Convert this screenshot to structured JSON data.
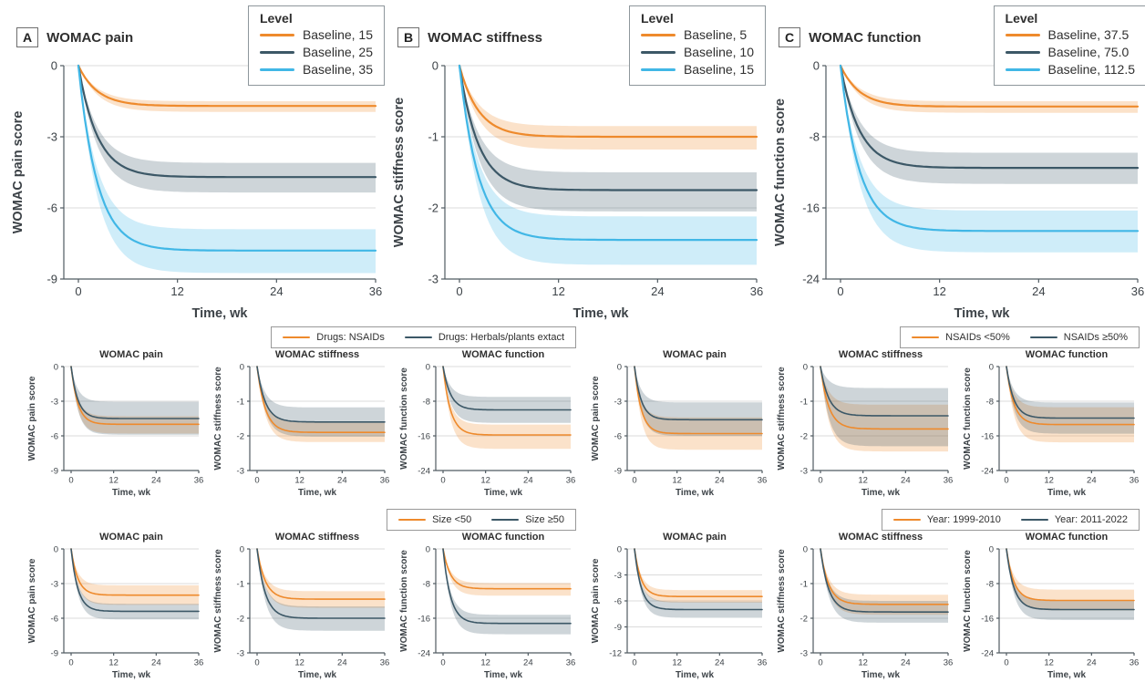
{
  "colors": {
    "orange": "#EE8A2C",
    "slate": "#3C5867",
    "blue": "#41B7E6",
    "grid": "#DBDBDB",
    "axis": "#4F5A61",
    "band_opacity": 0.25
  },
  "subgroups": [
    {
      "legend": [
        {
          "label": "Drugs: NSAIDs",
          "color": "#EE8A2C"
        },
        {
          "label": "Drugs: Herbals/plants extact",
          "color": "#3C5867"
        }
      ]
    },
    {
      "legend": [
        {
          "label": "NSAIDs <50%",
          "color": "#EE8A2C"
        },
        {
          "label": "NSAIDs ≥50%",
          "color": "#3C5867"
        }
      ]
    },
    {
      "legend": [
        {
          "label": "Size <50",
          "color": "#EE8A2C"
        },
        {
          "label": "Size ≥50",
          "color": "#3C5867"
        }
      ]
    },
    {
      "legend": [
        {
          "label": "Year: 1999-2010",
          "color": "#EE8A2C"
        },
        {
          "label": "Year: 2011-2022",
          "color": "#3C5867"
        }
      ]
    }
  ],
  "chart_data": [
    {
      "type": "line",
      "size": "large",
      "panel_label": "A",
      "title": "WOMAC pain",
      "ylabel": "WOMAC pain score",
      "xlabel": "Time, wk",
      "xlim": [
        0,
        36
      ],
      "xticks": [
        0,
        12,
        24,
        36
      ],
      "ylim": [
        -9,
        0
      ],
      "yticks": [
        0,
        -3,
        -6,
        -9
      ],
      "legend_title": "Level",
      "tau": 2.3,
      "series": [
        {
          "name": "Baseline, 15",
          "color": "#EE8A2C",
          "plateau": -1.7,
          "band": [
            -1.5,
            -1.95
          ]
        },
        {
          "name": "Baseline, 25",
          "color": "#3C5867",
          "plateau": -4.7,
          "band": [
            -4.1,
            -5.35
          ]
        },
        {
          "name": "Baseline, 35",
          "color": "#41B7E6",
          "plateau": -7.8,
          "band": [
            -6.9,
            -8.75
          ]
        }
      ]
    },
    {
      "type": "line",
      "size": "large",
      "panel_label": "B",
      "title": "WOMAC stiffness",
      "ylabel": "WOMAC stiffness score",
      "xlabel": "Time, wk",
      "xlim": [
        0,
        36
      ],
      "xticks": [
        0,
        12,
        24,
        36
      ],
      "ylim": [
        -3,
        0
      ],
      "yticks": [
        0,
        -1,
        -2,
        -3
      ],
      "legend_title": "Level",
      "tau": 2.3,
      "series": [
        {
          "name": "Baseline, 5",
          "color": "#EE8A2C",
          "plateau": -1.0,
          "band": [
            -0.85,
            -1.18
          ]
        },
        {
          "name": "Baseline, 10",
          "color": "#3C5867",
          "plateau": -1.75,
          "band": [
            -1.5,
            -2.05
          ]
        },
        {
          "name": "Baseline, 15",
          "color": "#41B7E6",
          "plateau": -2.45,
          "band": [
            -2.12,
            -2.8
          ]
        }
      ]
    },
    {
      "type": "line",
      "size": "large",
      "panel_label": "C",
      "title": "WOMAC function",
      "ylabel": "WOMAC function score",
      "xlabel": "Time, wk",
      "xlim": [
        0,
        36
      ],
      "xticks": [
        0,
        12,
        24,
        36
      ],
      "ylim": [
        -24,
        0
      ],
      "yticks": [
        0,
        -8,
        -16,
        -24
      ],
      "legend_title": "Level",
      "tau": 2.3,
      "series": [
        {
          "name": "Baseline, 37.5",
          "color": "#EE8A2C",
          "plateau": -4.6,
          "band": [
            -4.0,
            -5.3
          ]
        },
        {
          "name": "Baseline, 75.0",
          "color": "#3C5867",
          "plateau": -11.5,
          "band": [
            -9.8,
            -13.3
          ]
        },
        {
          "name": "Baseline, 112.5",
          "color": "#41B7E6",
          "plateau": -18.6,
          "band": [
            -16.3,
            -21.0
          ]
        }
      ]
    },
    {
      "type": "line",
      "size": "small",
      "title": "WOMAC pain",
      "ylabel": "WOMAC pain score",
      "xlabel": "Time, wk",
      "xlim": [
        0,
        36
      ],
      "xticks": [
        0,
        12,
        24,
        36
      ],
      "ylim": [
        -9,
        0
      ],
      "yticks": [
        0,
        -3,
        -6,
        -9
      ],
      "tau": 1.9,
      "series": [
        {
          "name": "Drugs: NSAIDs",
          "color": "#EE8A2C",
          "plateau": -5.0,
          "band": [
            -4.3,
            -5.8
          ]
        },
        {
          "name": "Drugs: Herbals/plants extact",
          "color": "#3C5867",
          "plateau": -4.5,
          "band": [
            -3.05,
            -5.9
          ]
        }
      ]
    },
    {
      "type": "line",
      "size": "small",
      "title": "WOMAC stiffness",
      "ylabel": "WOMAC stiffness score",
      "xlabel": "Time, wk",
      "xlim": [
        0,
        36
      ],
      "xticks": [
        0,
        12,
        24,
        36
      ],
      "ylim": [
        -3,
        0
      ],
      "yticks": [
        0,
        -1,
        -2,
        -3
      ],
      "tau": 2.3,
      "series": [
        {
          "name": "Drugs: NSAIDs",
          "color": "#EE8A2C",
          "plateau": -1.9,
          "band": [
            -1.62,
            -2.18
          ]
        },
        {
          "name": "Drugs: Herbals/plants extact",
          "color": "#3C5867",
          "plateau": -1.6,
          "band": [
            -1.18,
            -2.02
          ]
        }
      ]
    },
    {
      "type": "line",
      "size": "small",
      "title": "WOMAC function",
      "ylabel": "WOMAC function score",
      "xlabel": "Time, wk",
      "xlim": [
        0,
        36
      ],
      "xticks": [
        0,
        12,
        24,
        36
      ],
      "ylim": [
        -24,
        0
      ],
      "yticks": [
        0,
        -8,
        -16,
        -24
      ],
      "tau": 2.1,
      "series": [
        {
          "name": "Drugs: NSAIDs",
          "color": "#EE8A2C",
          "plateau": -15.8,
          "band": [
            -13.4,
            -19.0
          ]
        },
        {
          "name": "Drugs: Herbals/plants extact",
          "color": "#3C5867",
          "plateau": -10.0,
          "band": [
            -7.0,
            -13.0
          ]
        }
      ]
    },
    {
      "type": "line",
      "size": "small",
      "title": "WOMAC pain",
      "ylabel": "WOMAC pain score",
      "xlabel": "Time, wk",
      "xlim": [
        0,
        36
      ],
      "xticks": [
        0,
        12,
        24,
        36
      ],
      "ylim": [
        -9,
        0
      ],
      "yticks": [
        0,
        -3,
        -6,
        -9
      ],
      "tau": 1.9,
      "series": [
        {
          "name": "NSAIDs <50%",
          "color": "#EE8A2C",
          "plateau": -5.8,
          "band": [
            -4.4,
            -7.2
          ]
        },
        {
          "name": "NSAIDs ≥50%",
          "color": "#3C5867",
          "plateau": -4.6,
          "band": [
            -3.1,
            -6.0
          ]
        }
      ]
    },
    {
      "type": "line",
      "size": "small",
      "title": "WOMAC stiffness",
      "ylabel": "WOMAC stiffness score",
      "xlabel": "Time, wk",
      "xlim": [
        0,
        36
      ],
      "xticks": [
        0,
        12,
        24,
        36
      ],
      "ylim": [
        -3,
        0
      ],
      "yticks": [
        0,
        -1,
        -2,
        -3
      ],
      "tau": 2.3,
      "series": [
        {
          "name": "NSAIDs <50%",
          "color": "#EE8A2C",
          "plateau": -1.8,
          "band": [
            -1.1,
            -2.45
          ]
        },
        {
          "name": "NSAIDs ≥50%",
          "color": "#3C5867",
          "plateau": -1.42,
          "band": [
            -0.62,
            -2.3
          ]
        }
      ]
    },
    {
      "type": "line",
      "size": "small",
      "title": "WOMAC function",
      "ylabel": "WOMAC function score",
      "xlabel": "Time, wk",
      "xlim": [
        0,
        36
      ],
      "xticks": [
        0,
        12,
        24,
        36
      ],
      "ylim": [
        -24,
        0
      ],
      "yticks": [
        0,
        -8,
        -16,
        -24
      ],
      "tau": 2.1,
      "series": [
        {
          "name": "NSAIDs <50%",
          "color": "#EE8A2C",
          "plateau": -13.4,
          "band": [
            -9.4,
            -17.5
          ]
        },
        {
          "name": "NSAIDs ≥50%",
          "color": "#3C5867",
          "plateau": -11.9,
          "band": [
            -8.3,
            -15.5
          ]
        }
      ]
    },
    {
      "type": "line",
      "size": "small",
      "title": "WOMAC pain",
      "ylabel": "WOMAC pain score",
      "xlabel": "Time, wk",
      "xlim": [
        0,
        36
      ],
      "xticks": [
        0,
        12,
        24,
        36
      ],
      "ylim": [
        -9,
        0
      ],
      "yticks": [
        0,
        -3,
        -6,
        -9
      ],
      "tau": 1.9,
      "series": [
        {
          "name": "Size <50",
          "color": "#EE8A2C",
          "plateau": -4.0,
          "band": [
            -3.15,
            -4.85
          ]
        },
        {
          "name": "Size ≥50",
          "color": "#3C5867",
          "plateau": -5.4,
          "band": [
            -4.75,
            -6.1
          ]
        }
      ]
    },
    {
      "type": "line",
      "size": "small",
      "title": "WOMAC stiffness",
      "ylabel": "WOMAC stiffness score",
      "xlabel": "Time, wk",
      "xlim": [
        0,
        36
      ],
      "xticks": [
        0,
        12,
        24,
        36
      ],
      "ylim": [
        -3,
        0
      ],
      "yticks": [
        0,
        -1,
        -2,
        -3
      ],
      "tau": 2.3,
      "series": [
        {
          "name": "Size <50",
          "color": "#EE8A2C",
          "plateau": -1.45,
          "band": [
            -1.22,
            -1.7
          ]
        },
        {
          "name": "Size ≥50",
          "color": "#3C5867",
          "plateau": -2.0,
          "band": [
            -1.66,
            -2.36
          ]
        }
      ]
    },
    {
      "type": "line",
      "size": "small",
      "title": "WOMAC function",
      "ylabel": "WOMAC function score",
      "xlabel": "Time, wk",
      "xlim": [
        0,
        36
      ],
      "xticks": [
        0,
        12,
        24,
        36
      ],
      "ylim": [
        -24,
        0
      ],
      "yticks": [
        0,
        -8,
        -16,
        -24
      ],
      "tau": 2.1,
      "series": [
        {
          "name": "Size <50",
          "color": "#EE8A2C",
          "plateau": -9.2,
          "band": [
            -7.9,
            -10.8
          ]
        },
        {
          "name": "Size ≥50",
          "color": "#3C5867",
          "plateau": -17.2,
          "band": [
            -15.2,
            -19.7
          ]
        }
      ]
    },
    {
      "type": "line",
      "size": "small",
      "title": "WOMAC pain",
      "ylabel": "WOMAC pain score",
      "xlabel": "Time, wk",
      "xlim": [
        0,
        36
      ],
      "xticks": [
        0,
        12,
        24,
        36
      ],
      "ylim": [
        -12,
        0
      ],
      "yticks": [
        0,
        -3,
        -6,
        -9,
        -12
      ],
      "tau": 1.9,
      "series": [
        {
          "name": "Year: 1999-2010",
          "color": "#EE8A2C",
          "plateau": -5.5,
          "band": [
            -4.75,
            -6.2
          ]
        },
        {
          "name": "Year: 2011-2022",
          "color": "#3C5867",
          "plateau": -7.0,
          "band": [
            -6.1,
            -7.95
          ]
        }
      ]
    },
    {
      "type": "line",
      "size": "small",
      "title": "WOMAC stiffness",
      "ylabel": "WOMAC stiffness score",
      "xlabel": "Time, wk",
      "xlim": [
        0,
        36
      ],
      "xticks": [
        0,
        12,
        24,
        36
      ],
      "ylim": [
        -3,
        0
      ],
      "yticks": [
        0,
        -1,
        -2,
        -3
      ],
      "tau": 2.3,
      "series": [
        {
          "name": "Year: 1999-2010",
          "color": "#EE8A2C",
          "plateau": -1.6,
          "band": [
            -1.32,
            -1.9
          ]
        },
        {
          "name": "Year: 2011-2022",
          "color": "#3C5867",
          "plateau": -1.82,
          "band": [
            -1.5,
            -2.13
          ]
        }
      ]
    },
    {
      "type": "line",
      "size": "small",
      "title": "WOMAC function",
      "ylabel": "WOMAC function score",
      "xlabel": "Time, wk",
      "xlim": [
        0,
        36
      ],
      "xticks": [
        0,
        12,
        24,
        36
      ],
      "ylim": [
        -24,
        0
      ],
      "yticks": [
        0,
        -8,
        -16,
        -24
      ],
      "tau": 2.1,
      "series": [
        {
          "name": "Year: 1999-2010",
          "color": "#EE8A2C",
          "plateau": -11.9,
          "band": [
            -9.4,
            -14.2
          ]
        },
        {
          "name": "Year: 2011-2022",
          "color": "#3C5867",
          "plateau": -14.0,
          "band": [
            -11.8,
            -16.4
          ]
        }
      ]
    }
  ]
}
